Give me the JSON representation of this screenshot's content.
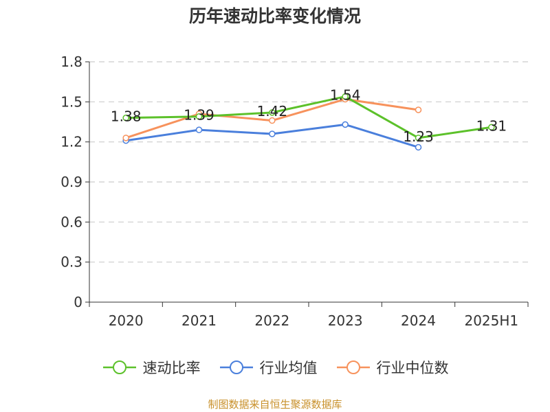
{
  "chart_data": {
    "type": "line",
    "title": "历年速动比率变化情况",
    "categories": [
      "2020",
      "2021",
      "2022",
      "2023",
      "2024",
      "2025H1"
    ],
    "ylim": [
      0,
      1.8
    ],
    "yticks": [
      "0",
      "0.3",
      "0.6",
      "0.9",
      "1.2",
      "1.5",
      "1.8"
    ],
    "grid": true,
    "legend_position": "bottom",
    "series": [
      {
        "name": "速动比率",
        "color": "#5cc12a",
        "values": [
          1.38,
          1.39,
          1.42,
          1.54,
          1.23,
          1.31
        ],
        "labels": [
          "1.38",
          "1.39",
          "1.42",
          "1.54",
          "1.23",
          "1.31"
        ]
      },
      {
        "name": "行业均值",
        "color": "#4a7fdc",
        "values": [
          1.21,
          1.29,
          1.26,
          1.33,
          1.16,
          null
        ]
      },
      {
        "name": "行业中位数",
        "color": "#f7925c",
        "values": [
          1.23,
          1.41,
          1.36,
          1.52,
          1.44,
          null
        ]
      }
    ]
  },
  "source_note": "制图数据来自恒生聚源数据库"
}
